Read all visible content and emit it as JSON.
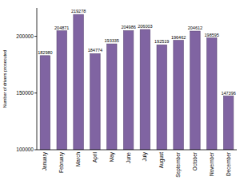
{
  "chart_data": {
    "type": "bar",
    "y_label": "Number of drivers prosecuted",
    "categories": [
      "January",
      "February",
      "March",
      "April",
      "May",
      "June",
      "July",
      "August",
      "September",
      "October",
      "November",
      "December"
    ],
    "values": [
      182980,
      204871,
      219278,
      184774,
      193335,
      204986,
      206003,
      192519,
      196462,
      204612,
      198595,
      147396
    ],
    "color": "#8064a2",
    "ylim": [
      100000,
      225000
    ],
    "yticks": [
      100000,
      150000,
      200000
    ],
    "grid": false,
    "data_labels": true
  }
}
